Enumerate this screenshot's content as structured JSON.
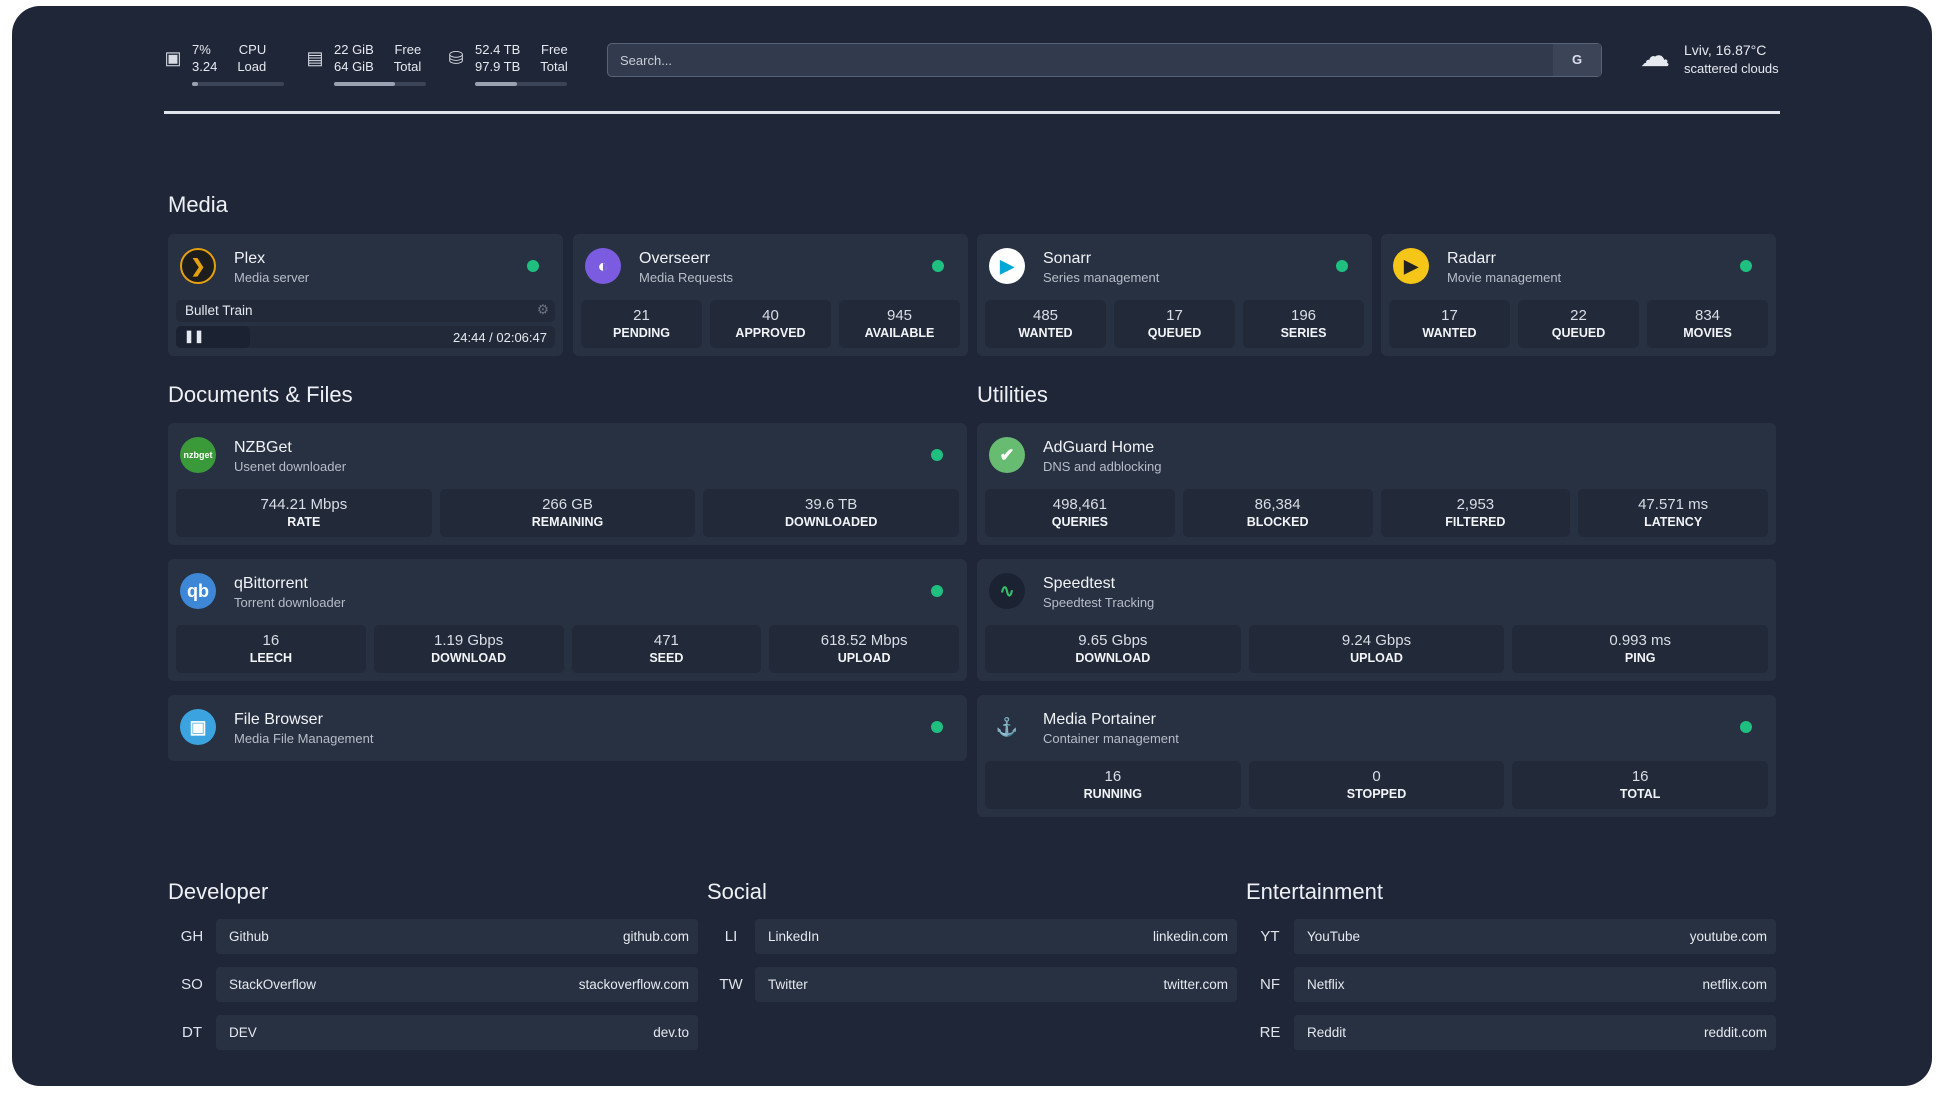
{
  "resources": {
    "cpu": {
      "icon": "cpu-icon",
      "value1": "7%",
      "label1": "CPU",
      "value2": "3.24",
      "label2": "Load",
      "percent": 7
    },
    "memory": {
      "icon": "memory-icon",
      "value1": "22 GiB",
      "label1": "Free",
      "value2": "64 GiB",
      "label2": "Total",
      "percent": 66
    },
    "disk": {
      "icon": "disk-icon",
      "value1": "52.4 TB",
      "label1": "Free",
      "value2": "97.9 TB",
      "label2": "Total",
      "percent": 46
    }
  },
  "search": {
    "placeholder": "Search...",
    "engine_label": "G"
  },
  "weather": {
    "icon": "cloud-icon",
    "location_temp": "Lviv, 16.87°C",
    "condition": "scattered clouds"
  },
  "status_color": "#1fbf7f",
  "sections": {
    "media": "Media",
    "docs": "Documents & Files",
    "utilities": "Utilities",
    "developer": "Developer",
    "social": "Social",
    "entertainment": "Entertainment"
  },
  "plex": {
    "name": "Plex",
    "desc": "Media server",
    "now_playing": "Bullet Train",
    "time": "24:44 / 02:06:47",
    "progress": 0.195
  },
  "overseerr": {
    "name": "Overseerr",
    "desc": "Media Requests",
    "stats": [
      {
        "v": "21",
        "l": "PENDING"
      },
      {
        "v": "40",
        "l": "APPROVED"
      },
      {
        "v": "945",
        "l": "AVAILABLE"
      }
    ]
  },
  "sonarr": {
    "name": "Sonarr",
    "desc": "Series management",
    "stats": [
      {
        "v": "485",
        "l": "WANTED"
      },
      {
        "v": "17",
        "l": "QUEUED"
      },
      {
        "v": "196",
        "l": "SERIES"
      }
    ]
  },
  "radarr": {
    "name": "Radarr",
    "desc": "Movie management",
    "stats": [
      {
        "v": "17",
        "l": "WANTED"
      },
      {
        "v": "22",
        "l": "QUEUED"
      },
      {
        "v": "834",
        "l": "MOVIES"
      }
    ]
  },
  "nzbget": {
    "name": "NZBGet",
    "desc": "Usenet downloader",
    "icon_text": "nzbget",
    "stats": [
      {
        "v": "744.21 Mbps",
        "l": "RATE"
      },
      {
        "v": "266 GB",
        "l": "REMAINING"
      },
      {
        "v": "39.6 TB",
        "l": "DOWNLOADED"
      }
    ]
  },
  "qbittorrent": {
    "name": "qBittorrent",
    "desc": "Torrent downloader",
    "icon_text": "qb",
    "stats": [
      {
        "v": "16",
        "l": "LEECH"
      },
      {
        "v": "1.19 Gbps",
        "l": "DOWNLOAD"
      },
      {
        "v": "471",
        "l": "SEED"
      },
      {
        "v": "618.52 Mbps",
        "l": "UPLOAD"
      }
    ]
  },
  "filebrowser": {
    "name": "File Browser",
    "desc": "Media File Management"
  },
  "adguard": {
    "name": "AdGuard Home",
    "desc": "DNS and adblocking",
    "stats": [
      {
        "v": "498,461",
        "l": "QUERIES"
      },
      {
        "v": "86,384",
        "l": "BLOCKED"
      },
      {
        "v": "2,953",
        "l": "FILTERED"
      },
      {
        "v": "47.571 ms",
        "l": "LATENCY"
      }
    ]
  },
  "speedtest": {
    "name": "Speedtest",
    "desc": "Speedtest Tracking",
    "stats": [
      {
        "v": "9.65 Gbps",
        "l": "DOWNLOAD"
      },
      {
        "v": "9.24 Gbps",
        "l": "UPLOAD"
      },
      {
        "v": "0.993 ms",
        "l": "PING"
      }
    ]
  },
  "portainer": {
    "name": "Media Portainer",
    "desc": "Container management",
    "stats": [
      {
        "v": "16",
        "l": "RUNNING"
      },
      {
        "v": "0",
        "l": "STOPPED"
      },
      {
        "v": "16",
        "l": "TOTAL"
      }
    ]
  },
  "bookmarks": {
    "developer": [
      {
        "ab": "GH",
        "name": "Github",
        "url": "github.com"
      },
      {
        "ab": "SO",
        "name": "StackOverflow",
        "url": "stackoverflow.com"
      },
      {
        "ab": "DT",
        "name": "DEV",
        "url": "dev.to"
      }
    ],
    "social": [
      {
        "ab": "LI",
        "name": "LinkedIn",
        "url": "linkedin.com"
      },
      {
        "ab": "TW",
        "name": "Twitter",
        "url": "twitter.com"
      }
    ],
    "entertainment": [
      {
        "ab": "YT",
        "name": "YouTube",
        "url": "youtube.com"
      },
      {
        "ab": "NF",
        "name": "Netflix",
        "url": "netflix.com"
      },
      {
        "ab": "RE",
        "name": "Reddit",
        "url": "reddit.com"
      }
    ]
  }
}
